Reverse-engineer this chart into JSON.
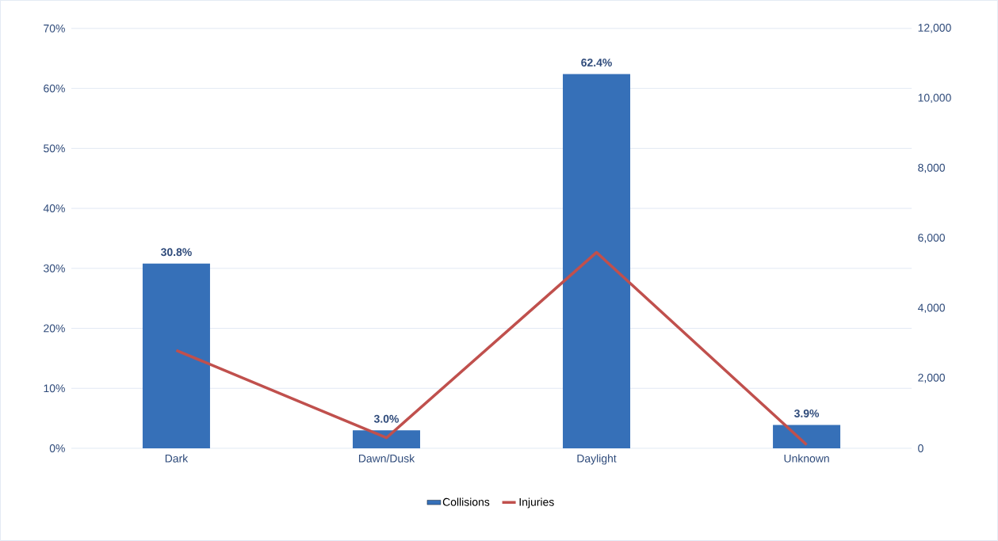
{
  "chart_data": {
    "type": "bar",
    "categories": [
      "Dark",
      "Dawn/Dusk",
      "Daylight",
      "Unknown"
    ],
    "series": [
      {
        "name": "Collisions",
        "color": "#3670b8",
        "values": [
          30.8,
          3.0,
          62.4,
          3.9
        ],
        "value_labels": [
          "30.8%",
          "3.0%",
          "62.4%",
          "3.9%"
        ]
      },
      {
        "name": "Injuries",
        "type": "line",
        "axis": "y2",
        "color": "#c0504d",
        "values": [
          2800,
          300,
          5600,
          100
        ]
      }
    ],
    "ylim": [
      0,
      70
    ],
    "yticks": [
      {
        "value": 0,
        "label": "0%"
      },
      {
        "value": 10,
        "label": "10%"
      },
      {
        "value": 20,
        "label": "20%"
      },
      {
        "value": 30,
        "label": "30%"
      },
      {
        "value": 40,
        "label": "40%"
      },
      {
        "value": 50,
        "label": "50%"
      },
      {
        "value": 60,
        "label": "60%"
      },
      {
        "value": 70,
        "label": "70%"
      }
    ],
    "y2lim": [
      0,
      12000
    ],
    "y2ticks": [
      0,
      {
        "value": 2000,
        "label": "2,000"
      },
      {
        "value": 4000,
        "label": "4,000"
      },
      {
        "value": 6000,
        "label": "6,000"
      },
      {
        "value": 8000,
        "label": "8,000"
      },
      {
        "value": 10000,
        "label": "10,000"
      },
      {
        "value": 12000,
        "label": "12,000"
      }
    ],
    "grid": "y",
    "legend": "bottom",
    "marker": "none"
  }
}
